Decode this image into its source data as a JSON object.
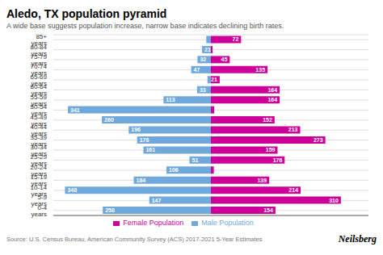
{
  "chart_data": {
    "type": "bar",
    "orientation": "horizontal",
    "title": "Aledo, TX population pyramid",
    "subtitle": "A wide base suggests population increase, narrow base indicates declining birth rates.",
    "annotations": [
      "Source: U.S. Census Bureau, American Community Survey (ACS) 2017-2021 5-Year Estimates",
      "Neilsberg"
    ],
    "categories": [
      "0-4 years",
      "5-9 years",
      "10-14 years",
      "15-19 years",
      "20-24 years",
      "25-29 years",
      "30-34 years",
      "35-39 years",
      "40-44 years",
      "45-49 years",
      "50-54 years",
      "55-59 years",
      "60-64 years",
      "65-69 years",
      "70-74 years",
      "75-79 years",
      "80-84 years",
      "85+ years"
    ],
    "series": [
      {
        "name": "Male Population",
        "color": "#6fa8dc",
        "values": [
          258,
          147,
          348,
          184,
          106,
          51,
          161,
          176,
          196,
          260,
          341,
          113,
          33,
          8,
          47,
          32,
          21,
          11
        ],
        "value_labels": [
          "258",
          "147",
          "348",
          "184",
          "106",
          "51",
          "161",
          "176",
          "196",
          "260",
          "341",
          "113",
          "33",
          null,
          "47",
          "32",
          "21",
          null
        ]
      },
      {
        "name": "Female Population",
        "color": "#cc0099",
        "values": [
          154,
          310,
          214,
          139,
          7,
          176,
          159,
          273,
          213,
          152,
          8,
          164,
          164,
          21,
          135,
          45,
          4,
          72
        ],
        "value_labels": [
          "154",
          "310",
          "214",
          "139",
          null,
          "176",
          "159",
          "273",
          "213",
          "152",
          null,
          "164",
          "164",
          "21",
          "135",
          "45",
          null,
          "72"
        ]
      }
    ],
    "xlim": [
      -375.84,
      375.84
    ],
    "xticks": [],
    "grid": true,
    "legend": "bottom",
    "data_labels": true,
    "tick_labels": "y"
  }
}
